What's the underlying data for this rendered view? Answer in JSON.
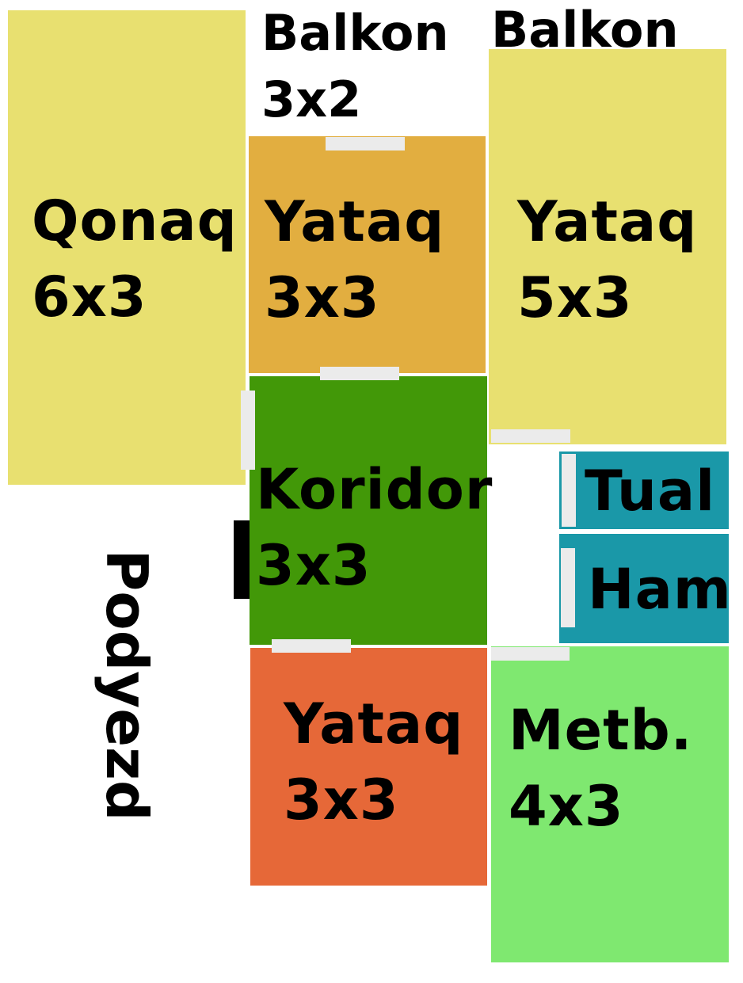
{
  "colors": {
    "qonaq": "#e8e070",
    "yataq_top": "#e2ae40",
    "yataq_right": "#e8e070",
    "koridor": "#429808",
    "yataq_bottom": "#e66838",
    "tual": "#1a98a8",
    "ham": "#1a98a8",
    "metbex": "#7fe870",
    "door": "#ebebeb",
    "entrance": "#000000"
  },
  "labels": {
    "balkon_left": {
      "name": "Balkon",
      "size": "3x2"
    },
    "balkon_right": {
      "name": "Balkon"
    },
    "podyezd": "Podyezd"
  },
  "rooms": {
    "qonaq": {
      "name": "Qonaq",
      "size": "6x3"
    },
    "yataq_top": {
      "name": "Yataq",
      "size": "3x3"
    },
    "yataq_right": {
      "name": "Yataq",
      "size": "5x3"
    },
    "koridor": {
      "name": "Koridor",
      "size": "3x3"
    },
    "yataq_bottom": {
      "name": "Yataq",
      "size": "3x3"
    },
    "tual": {
      "name": "Tual"
    },
    "ham": {
      "name": "Ham"
    },
    "metbex": {
      "name": "Metb.",
      "size": "4x3"
    }
  }
}
